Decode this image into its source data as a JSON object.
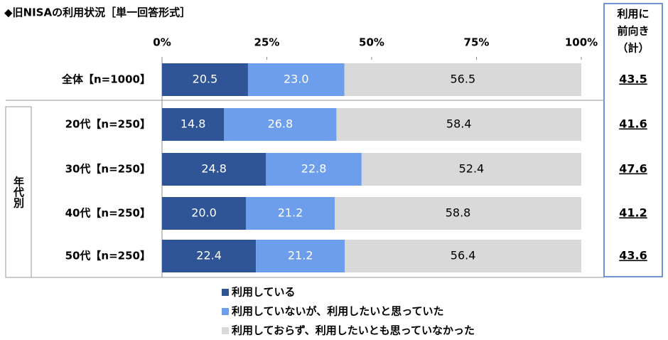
{
  "chart_data": {
    "type": "stacked_barh",
    "title": "◆旧NISAの利用状況［単一回答形式］",
    "categories": [
      "全体【n=1000】",
      "20代【n=250】",
      "30代【n=250】",
      "40代【n=250】",
      "50代【n=250】"
    ],
    "group_label": "年代別",
    "series": [
      {
        "name": "利用している",
        "color": "#2f5597",
        "values": [
          20.5,
          14.8,
          24.8,
          20.0,
          22.4
        ],
        "value_labels": [
          "20.5",
          "14.8",
          "24.8",
          "20.0",
          "22.4"
        ]
      },
      {
        "name": "利用していないが、利用したいと思っていた",
        "color": "#6d9eeb",
        "values": [
          23.0,
          26.8,
          22.8,
          21.2,
          21.2
        ],
        "value_labels": [
          "23.0",
          "26.8",
          "22.8",
          "21.2",
          "21.2"
        ]
      },
      {
        "name": "利用しておらず、利用したいとも思っていなかった",
        "color": "#d9d9d9",
        "values": [
          56.5,
          58.4,
          52.4,
          58.8,
          56.4
        ],
        "value_labels": [
          "56.5",
          "58.4",
          "52.4",
          "58.8",
          "56.4"
        ]
      }
    ],
    "xlim": [
      0,
      100
    ],
    "xticks": [
      {
        "value": 0,
        "label": "0%"
      },
      {
        "value": 25,
        "label": "25%"
      },
      {
        "value": 50,
        "label": "50%"
      },
      {
        "value": 75,
        "label": "75%"
      },
      {
        "value": 100,
        "label": "100%"
      }
    ],
    "totals": {
      "title_lines": [
        "利用に",
        "前向き",
        "（計）"
      ],
      "values": [
        43.5,
        41.6,
        47.6,
        41.2,
        43.6
      ]
    }
  }
}
